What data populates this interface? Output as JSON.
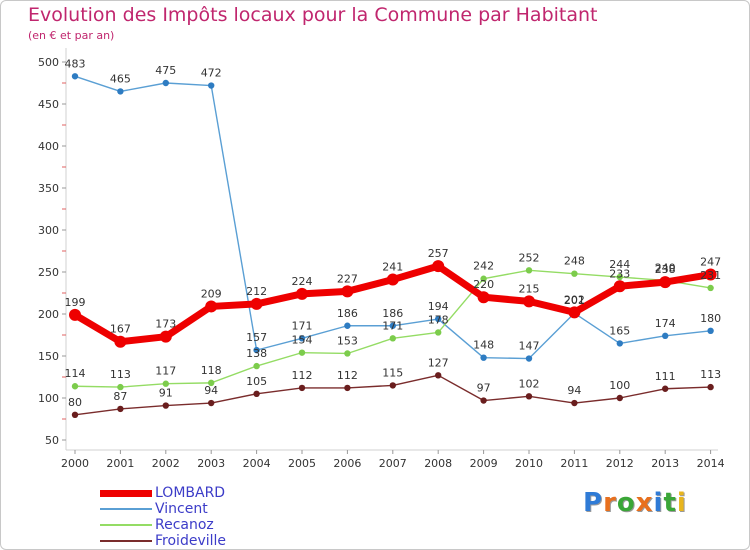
{
  "header": {
    "title": "Evolution des Impôts locaux pour la Commune par Habitant",
    "subtitle": "(en € et par an)"
  },
  "logo": {
    "letters": [
      {
        "ch": "P",
        "color": "#2f7bd6"
      },
      {
        "ch": "r",
        "color": "#e8701e"
      },
      {
        "ch": "o",
        "color": "#3aa637"
      },
      {
        "ch": "x",
        "color": "#e8701e"
      },
      {
        "ch": "i",
        "color": "#2f7bd6"
      },
      {
        "ch": "t",
        "color": "#3aa637"
      },
      {
        "ch": "i",
        "color": "#e8b51e"
      }
    ]
  },
  "chart_data": {
    "type": "line",
    "title": "Evolution des Impôts locaux pour la Commune par Habitant",
    "subtitle": "(en € et par an)",
    "x": [
      "2000",
      "2001",
      "2002",
      "2003",
      "2004",
      "2005",
      "2006",
      "2007",
      "2008",
      "2009",
      "2010",
      "2011",
      "2012",
      "2013",
      "2014"
    ],
    "ylim": [
      50,
      500
    ],
    "yticks": [
      50,
      100,
      150,
      200,
      250,
      300,
      350,
      400,
      450,
      500
    ],
    "grid": false,
    "legend_position": "bottom-left",
    "series": [
      {
        "name": "LOMBARD",
        "color": "#ee0000",
        "bold": true,
        "values": [
          199,
          167,
          173,
          209,
          212,
          224,
          227,
          241,
          257,
          220,
          215,
          202,
          233,
          238,
          247
        ],
        "labels": [
          "199",
          "167",
          "173",
          "209",
          "212",
          "224",
          "227",
          "241",
          "257",
          "220",
          "215",
          "202",
          "233",
          "238",
          "247"
        ]
      },
      {
        "name": "Vincent",
        "color": "#5a9fd4",
        "marker": "#2e7cc2",
        "values": [
          483,
          465,
          475,
          472,
          157,
          171,
          186,
          186,
          194,
          148,
          147,
          201,
          165,
          174,
          180
        ],
        "labels": [
          "483",
          "465",
          "475",
          "472",
          "157",
          "171",
          "186",
          "186",
          "194",
          "148",
          "147",
          "201",
          "165",
          "174",
          "180"
        ]
      },
      {
        "name": "Recanoz",
        "color": "#94dc64",
        "marker": "#7ccc4c",
        "values": [
          114,
          113,
          117,
          118,
          138,
          154,
          153,
          171,
          178,
          242,
          252,
          248,
          244,
          240,
          231
        ],
        "labels": [
          "114",
          "113",
          "117",
          "118",
          "138",
          "154",
          "153",
          "171",
          "178",
          "242",
          "252",
          "248",
          "244",
          "240",
          "231"
        ]
      },
      {
        "name": "Froideville",
        "color": "#7a2c2c",
        "marker": "#6a1e1e",
        "values": [
          80,
          87,
          91,
          94,
          105,
          112,
          112,
          115,
          127,
          97,
          102,
          94,
          100,
          111,
          113
        ],
        "labels": [
          "80",
          "87",
          "91",
          "94",
          "105",
          "112",
          "112",
          "115",
          "127",
          "97",
          "102",
          "94",
          "100",
          "111",
          "113"
        ]
      }
    ]
  }
}
